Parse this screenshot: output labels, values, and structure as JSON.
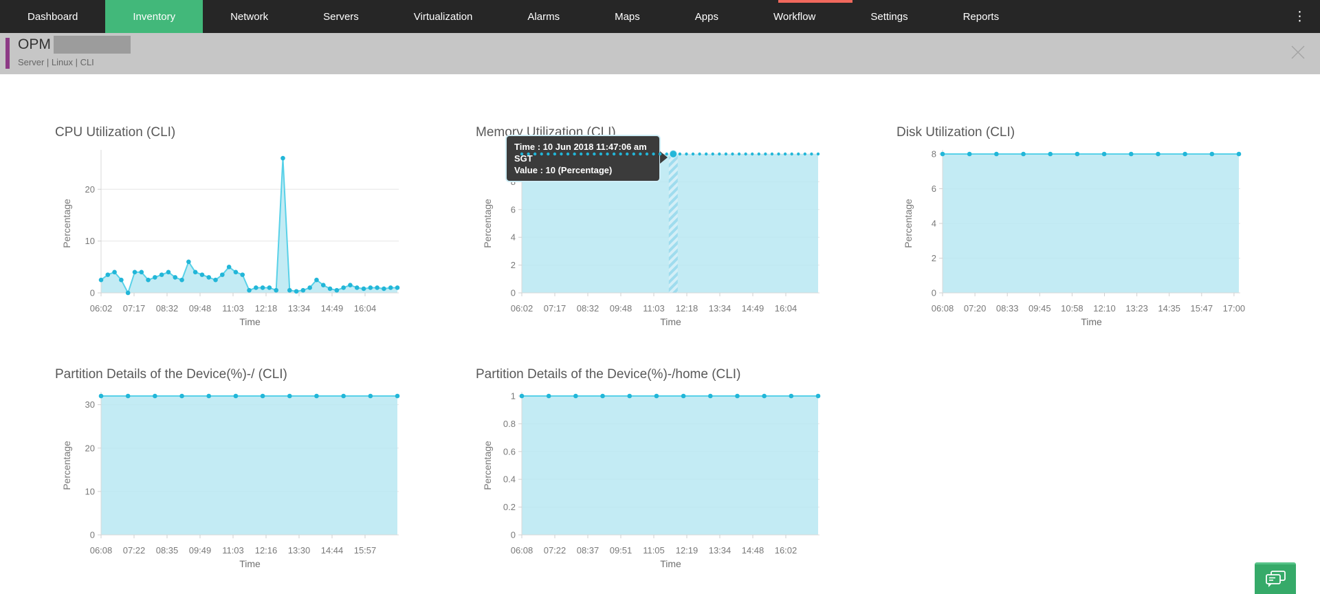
{
  "nav": {
    "items": [
      {
        "label": "Dashboard",
        "active": false
      },
      {
        "label": "Inventory",
        "active": true
      },
      {
        "label": "Network",
        "active": false
      },
      {
        "label": "Servers",
        "active": false
      },
      {
        "label": "Virtualization",
        "active": false
      },
      {
        "label": "Alarms",
        "active": false
      },
      {
        "label": "Maps",
        "active": false
      },
      {
        "label": "Apps",
        "active": false
      },
      {
        "label": "Workflow",
        "active": false
      },
      {
        "label": "Settings",
        "active": false
      },
      {
        "label": "Reports",
        "active": false
      }
    ],
    "more_icon": "⋮",
    "bar_color": "#262626",
    "active_color": "#42b87a",
    "alert_strip_color": "#f0685c"
  },
  "header": {
    "title": "OPM",
    "subtitle": "Server | Linux | CLI",
    "accent_color": "#8d3a85",
    "bg_color": "#c6c6c6"
  },
  "tooltip": {
    "time_label": "Time : 10 Jun 2018 11:47:06 am SGT",
    "value_label": "Value : 10 (Percentage)"
  },
  "colors": {
    "line": "#58d1e8",
    "dot": "#22b6d8",
    "fill": "#b9e7f2",
    "hatch_base": "#9fdcee",
    "grid": "#e5e5e5",
    "axis": "#d9d9d9",
    "tick_text": "#787878",
    "axis_label_text": "#6e6e6e"
  },
  "chart_data": [
    {
      "type": "area",
      "title": "CPU Utilization (CLI)",
      "ylabel": "Percentage",
      "xlabel": "Time",
      "yticks": [
        0,
        10,
        20
      ],
      "ylim": [
        0,
        26.8
      ],
      "categories": [
        "06:02",
        "07:17",
        "08:32",
        "09:48",
        "11:03",
        "12:18",
        "13:34",
        "14:49",
        "16:04"
      ],
      "style": "line-dots",
      "values": [
        2.5,
        3.5,
        4,
        2.5,
        0,
        4,
        4,
        2.5,
        3,
        3.5,
        4,
        3,
        2.5,
        6,
        4,
        3.5,
        3,
        2.5,
        3.5,
        5,
        4,
        3.5,
        0.5,
        1,
        1,
        1,
        0.5,
        26,
        0.5,
        0.3,
        0.5,
        1,
        2.5,
        1.5,
        0.8,
        0.5,
        1,
        1.5,
        1,
        0.8,
        1,
        1,
        0.8,
        1,
        1
      ]
    },
    {
      "type": "area",
      "title": "Memory Utilization (CLI)",
      "ylabel": "Percentage",
      "xlabel": "Time",
      "yticks": [
        0,
        2,
        4,
        6,
        8,
        10
      ],
      "ylim": [
        0,
        10
      ],
      "categories": [
        "06:02",
        "07:17",
        "08:32",
        "09:48",
        "11:03",
        "12:18",
        "13:34",
        "14:49",
        "16:04"
      ],
      "style": "dotted",
      "hover_index": 23,
      "hover_value": 10,
      "tooltip": true,
      "values": [
        10,
        10,
        10,
        10,
        10,
        10,
        10,
        10,
        10,
        10,
        10,
        10,
        10,
        10,
        10,
        10,
        10,
        10,
        10,
        10,
        10,
        10,
        10,
        10,
        10,
        10,
        10,
        10,
        10,
        10,
        10,
        10,
        10,
        10,
        10,
        10,
        10,
        10,
        10,
        10,
        10,
        10,
        10,
        10,
        10,
        10
      ]
    },
    {
      "type": "area",
      "title": "Disk Utilization (CLI)",
      "ylabel": "Percentage",
      "xlabel": "Time",
      "yticks": [
        0,
        2,
        4,
        6,
        8
      ],
      "ylim": [
        0,
        8
      ],
      "categories": [
        "06:08",
        "07:20",
        "08:33",
        "09:45",
        "10:58",
        "12:10",
        "13:23",
        "14:35",
        "15:47",
        "17:00"
      ],
      "style": "solid-dots",
      "values": [
        8,
        8,
        8,
        8,
        8,
        8,
        8,
        8,
        8,
        8,
        8,
        8
      ]
    },
    {
      "type": "area",
      "title": "Partition Details of the Device(%)-/ (CLI)",
      "ylabel": "Percentage",
      "xlabel": "Time",
      "yticks": [
        0,
        10,
        20,
        30
      ],
      "ylim": [
        0,
        32
      ],
      "categories": [
        "06:08",
        "07:22",
        "08:35",
        "09:49",
        "11:03",
        "12:16",
        "13:30",
        "14:44",
        "15:57"
      ],
      "style": "solid-dots",
      "values": [
        32,
        32,
        32,
        32,
        32,
        32,
        32,
        32,
        32,
        32,
        32,
        32
      ]
    },
    {
      "type": "area",
      "title": "Partition Details of the Device(%)-/home (CLI)",
      "ylabel": "Percentage",
      "xlabel": "Time",
      "yticks": [
        0,
        0.2,
        0.4,
        0.6,
        0.8,
        1
      ],
      "ylim": [
        0,
        1
      ],
      "categories": [
        "06:08",
        "07:22",
        "08:37",
        "09:51",
        "11:05",
        "12:19",
        "13:34",
        "14:48",
        "16:02"
      ],
      "style": "solid-dots",
      "values": [
        1,
        1,
        1,
        1,
        1,
        1,
        1,
        1,
        1,
        1,
        1,
        1
      ]
    }
  ],
  "chat_button": {
    "icon": "chat-bubbles-icon",
    "color": "#36aa69"
  }
}
